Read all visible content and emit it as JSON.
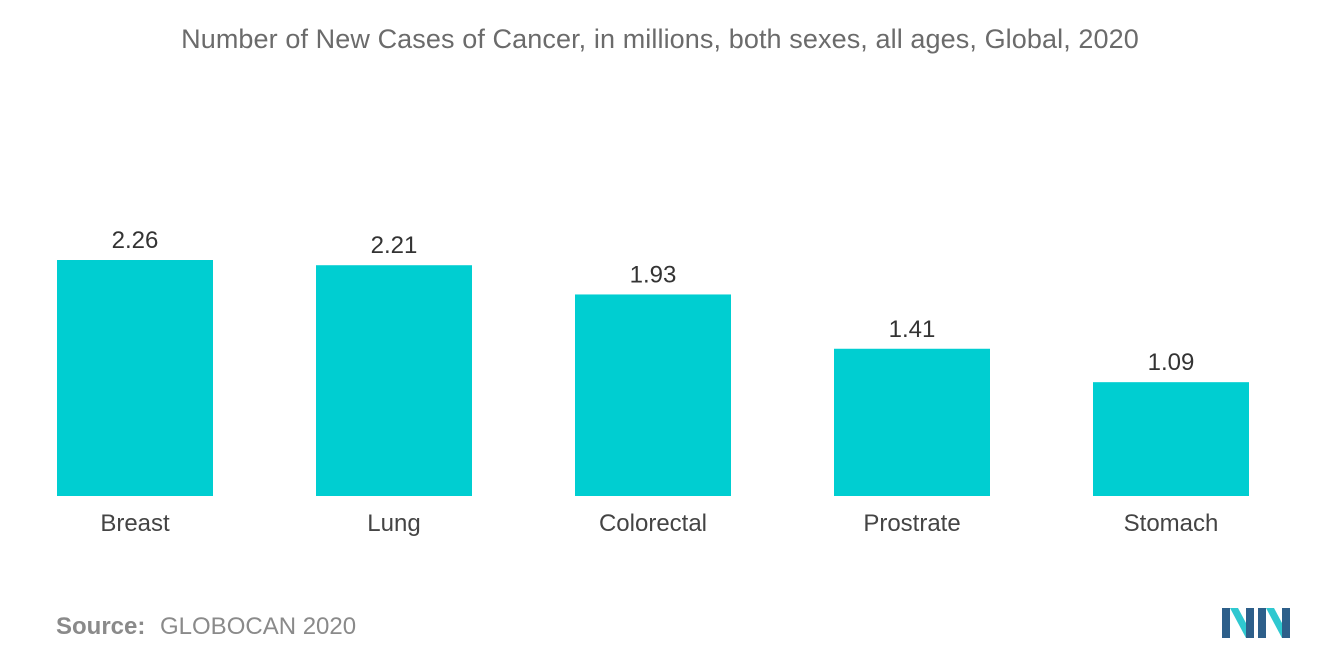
{
  "chart_data": {
    "type": "bar",
    "title": "Number of New Cases of Cancer, in millions, both sexes, all ages, Global, 2020",
    "categories": [
      "Breast",
      "Lung",
      "Colorectal",
      "Prostrate",
      "Stomach"
    ],
    "values": [
      2.26,
      2.21,
      1.93,
      1.41,
      1.09
    ],
    "value_labels": [
      "2.26",
      "2.21",
      "1.93",
      "1.41",
      "1.09"
    ],
    "xlabel": "",
    "ylabel": "",
    "ylim": [
      0,
      2.26
    ],
    "grid": false,
    "legend": "none"
  },
  "source": {
    "label": "Source:",
    "value": "GLOBOCAN 2020"
  },
  "colors": {
    "bar": "#00CED1",
    "title": "#6b6b6b",
    "tick_label": "#444444",
    "value_label": "#333333",
    "logo_dark": "#2d5f8a",
    "logo_light": "#2fc8d0"
  },
  "logo": {
    "icon": "company-logo-icon"
  }
}
